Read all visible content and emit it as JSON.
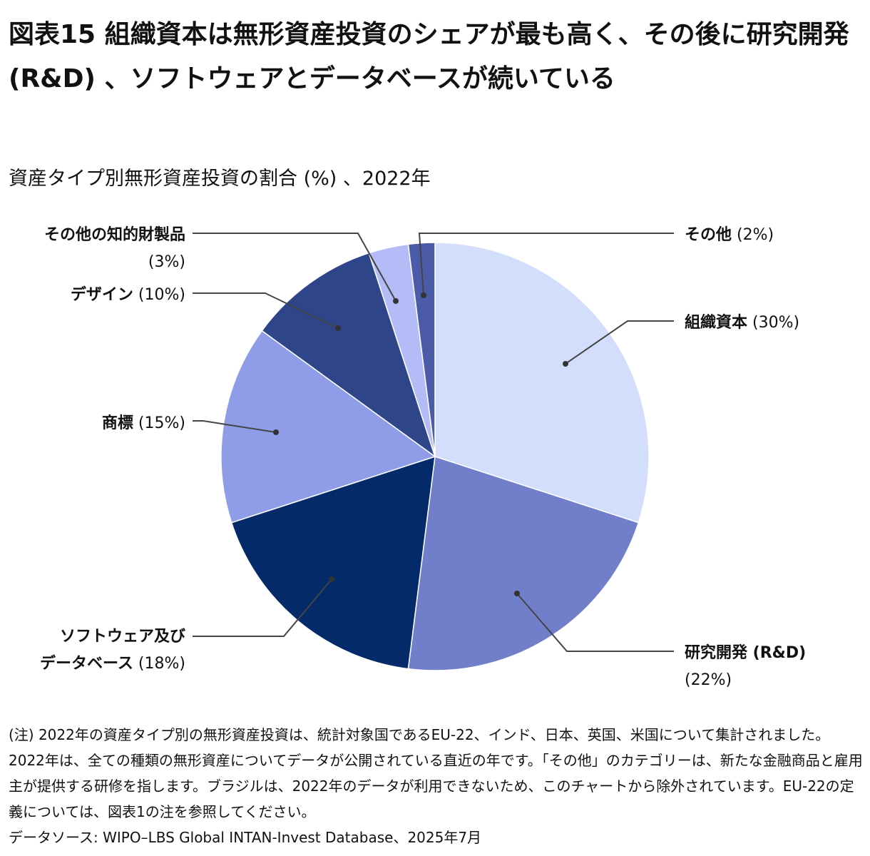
{
  "title": "図表15 組織資本は無形資産投資のシェアが最も高く、その後に研究開発 (R&D) 、ソフトウェアとデータベースが続いている",
  "subtitle": "資産タイプ別無形資産投資の割合 (%) 、2022年",
  "chart_data": {
    "type": "pie",
    "start": "12 o'clock, clockwise",
    "slices": [
      {
        "name": "組織資本",
        "pct_label": "(30%)",
        "value": 30,
        "color": "#d3defc"
      },
      {
        "name": "研究開発 (R&D)",
        "pct_label": "(22%)",
        "value": 22,
        "color": "#717fcb"
      },
      {
        "name": "ソフトウェア及びデータベース",
        "name_line1": "ソフトウェア及び",
        "name_line2": "データベース",
        "pct_label": "(18%)",
        "value": 18,
        "color": "#052a6a"
      },
      {
        "name": "商標",
        "pct_label": "(15%)",
        "value": 15,
        "color": "#8f9de9"
      },
      {
        "name": "デザイン",
        "pct_label": "(10%)",
        "value": 10,
        "color": "#2f4589"
      },
      {
        "name": "その他の知的財製品",
        "pct_label": "(3%)",
        "value": 3,
        "color": "#b3bcf7"
      },
      {
        "name": "その他",
        "pct_label": "(2%)",
        "value": 2,
        "color": "#4b5ba8"
      }
    ]
  },
  "notes": [
    "(注) 2022年の資産タイプ別の無形資産投資は、統計対象国であるEU-22、インド、日本、英国、米国について集計されました。2022年は、全ての種類の無形資産についてデータが公開されている直近の年です。「その他」のカテゴリーは、新たな金融商品と雇用主が提供する研修を指します。ブラジルは、2022年のデータが利用できないため、このチャートから除外されています。EU-22の定義については、図表1の注を参照してください。",
    "データソース: WIPO–LBS Global INTAN-Invest Database、2025年7月"
  ]
}
